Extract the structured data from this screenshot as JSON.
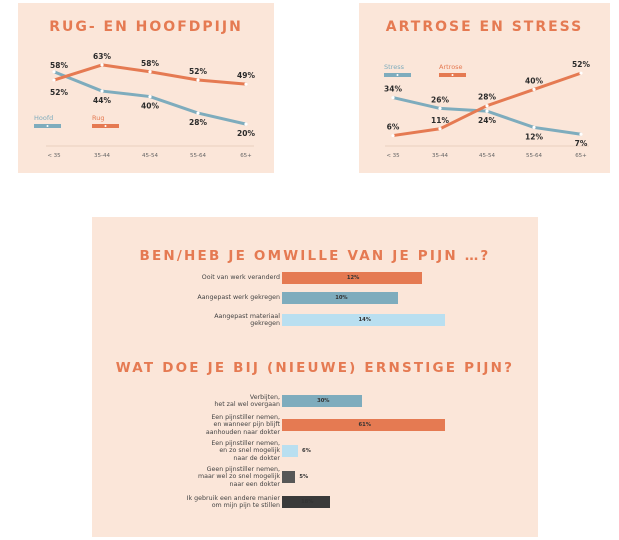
{
  "colors": {
    "orange": "#e57a52",
    "blue": "#7eacbd",
    "lightblue": "#b9dff0",
    "dark": "#575757",
    "darker": "#3a3a3a",
    "panel": "#fbe6d9"
  },
  "chart_data": [
    {
      "type": "line",
      "title": "RUG- EN HOOFDPIJN",
      "categories": [
        "< 35",
        "35-44",
        "45-54",
        "55-64",
        "65+"
      ],
      "series": [
        {
          "name": "Hoofd",
          "values": [
            58,
            44,
            40,
            28,
            20
          ],
          "labels": [
            "58%",
            "44%",
            "40%",
            "28%",
            "20%"
          ],
          "color": "#7eacbd"
        },
        {
          "name": "Rug",
          "values": [
            52,
            63,
            58,
            52,
            49
          ],
          "labels": [
            "52%",
            "63%",
            "58%",
            "52%",
            "49%"
          ],
          "color": "#e57a52"
        }
      ],
      "legend": "left-middle",
      "ylim": [
        15,
        68
      ]
    },
    {
      "type": "line",
      "title": "ARTROSE EN STRESS",
      "categories": [
        "< 35",
        "35-44",
        "45-54",
        "55-64",
        "65+"
      ],
      "series": [
        {
          "name": "Stress",
          "values": [
            34,
            26,
            24,
            12,
            7
          ],
          "labels": [
            "34%",
            "26%",
            "24%",
            "12%",
            "7%"
          ],
          "color": "#7eacbd"
        },
        {
          "name": "Artrose",
          "values": [
            6,
            11,
            28,
            40,
            52
          ],
          "labels": [
            "6%",
            "11%",
            "28%",
            "40%",
            "52%"
          ],
          "color": "#e57a52"
        }
      ],
      "legend": "top-left",
      "ylim": [
        2,
        58
      ]
    },
    {
      "type": "bar",
      "title": "BEN/HEB JE OMWILLE VAN JE PIJN …?",
      "categories": [
        "Ooit van werk veranderd",
        "Aangepast werk gekregen",
        "Aangepast materiaal gekregen"
      ],
      "values": [
        12,
        10,
        14
      ],
      "labels": [
        "12%",
        "10%",
        "14%"
      ],
      "colors": [
        "#e57a52",
        "#7eacbd",
        "#b9dff0"
      ],
      "xlim": [
        0,
        14
      ]
    },
    {
      "type": "bar",
      "title": "WAT DOE JE BIJ (NIEUWE) ERNSTIGE PIJN?",
      "categories": [
        "Verbijten, het zal wel overgaan",
        "Een pijnstiller nemen, en wanneer pijn blijft aanhouden naar dokter",
        "Een pijnstiller nemen, en zo snel mogelijk naar de dokter",
        "Geen pijnstiller nemen, maar wel zo snel mogelijk naar een dokter",
        "Ik gebruik een andere manier om mijn pijn te stillen"
      ],
      "label_lines": [
        [
          "Verbijten,",
          "het zal wel overgaan"
        ],
        [
          "Een pijnstiller nemen,",
          "en wanneer pijn blijft",
          "aanhouden naar dokter"
        ],
        [
          "Een pijnstiller nemen,",
          "en zo snel mogelijk",
          "naar de dokter"
        ],
        [
          "Geen pijnstiller nemen,",
          "maar wel zo snel mogelijk",
          "naar een dokter"
        ],
        [
          "Ik gebruik een andere manier",
          "om mijn pijn te stillen"
        ]
      ],
      "values": [
        30,
        61,
        6,
        5,
        18
      ],
      "labels": [
        "30%",
        "61%",
        "6%",
        "5%",
        "18%"
      ],
      "colors": [
        "#7eacbd",
        "#e57a52",
        "#b9dff0",
        "#575757",
        "#3a3a3a"
      ],
      "xlim": [
        0,
        61
      ]
    }
  ]
}
